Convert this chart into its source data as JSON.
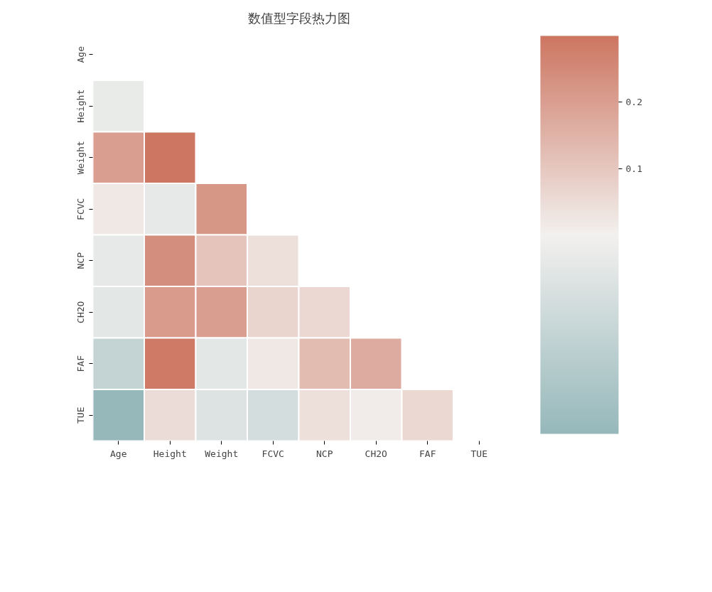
{
  "chart_data": {
    "type": "heatmap",
    "title": "数值型字段热力图",
    "categories": [
      "Age",
      "Height",
      "Weight",
      "FCVC",
      "NCP",
      "CH2O",
      "FAF",
      "TUE"
    ],
    "y_categories": [
      "Age",
      "Height",
      "Weight",
      "FCVC",
      "NCP",
      "CH2O",
      "FAF",
      "TUE"
    ],
    "cells": [
      [
        null,
        null,
        null,
        null,
        null,
        null,
        null,
        null
      ],
      [
        -0.03,
        null,
        null,
        null,
        null,
        null,
        null,
        null
      ],
      [
        0.2,
        0.3,
        null,
        null,
        null,
        null,
        null,
        null
      ],
      [
        0.02,
        -0.04,
        0.22,
        null,
        null,
        null,
        null,
        null
      ],
      [
        -0.04,
        0.24,
        0.11,
        0.04,
        null,
        null,
        null,
        null
      ],
      [
        -0.05,
        0.21,
        0.2,
        0.07,
        0.06,
        null,
        null,
        null
      ],
      [
        -0.15,
        0.29,
        -0.05,
        0.02,
        0.13,
        0.17,
        null,
        null
      ],
      [
        -0.3,
        0.05,
        -0.07,
        -0.1,
        0.04,
        0.01,
        0.06,
        null
      ]
    ],
    "clim": [
      -0.3,
      0.3
    ],
    "cticks": [
      0.1,
      0.2
    ]
  }
}
